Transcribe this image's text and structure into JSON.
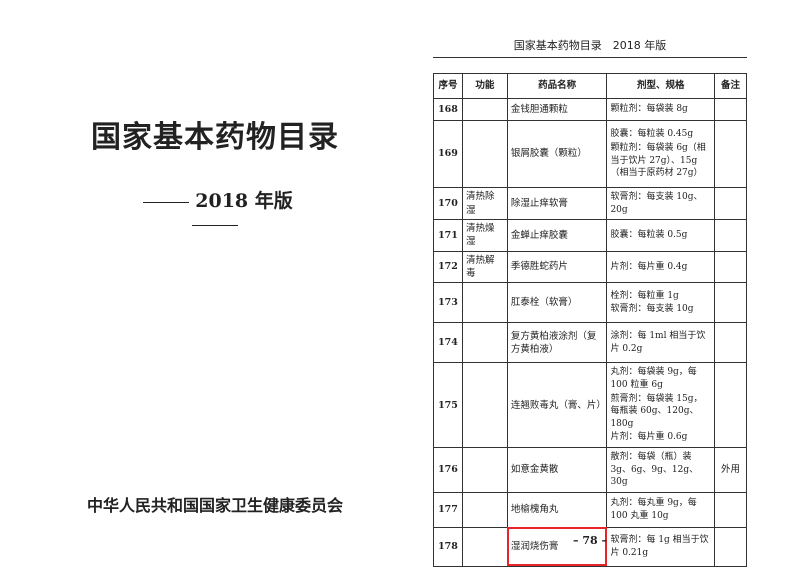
{
  "left_page": {
    "title": "国家基本药物目录",
    "edition": "2018 年版",
    "publisher": "中华人民共和国国家卫生健康委员会"
  },
  "right_page": {
    "running_header": "国家基本药物目录　2018 年版",
    "columns": [
      "序号",
      "功能",
      "药品名称",
      "剂型、规格",
      "备注"
    ],
    "rows": [
      {
        "no": "168",
        "function": "",
        "name": "金钱胆通颗粒",
        "specs": [
          "颗粒剂：每袋装 8g"
        ],
        "note": ""
      },
      {
        "no": "169",
        "function": "",
        "name": "银屑胶囊（颗粒）",
        "specs": [
          "胶囊：每粒装 0.45g",
          "颗粒剂：每袋装 6g（相当于饮片 27g）、15g（相当于原药材 27g）"
        ],
        "note": ""
      },
      {
        "no": "170",
        "function": "清热除湿",
        "name": "除湿止痒软膏",
        "specs": [
          "软膏剂：每支装 10g、20g"
        ],
        "note": ""
      },
      {
        "no": "171",
        "function": "清热燥湿",
        "name": "金蝉止痒胶囊",
        "specs": [
          "胶囊：每粒装 0.5g"
        ],
        "note": ""
      },
      {
        "no": "172",
        "function": "清热解毒",
        "name": "季德胜蛇药片",
        "specs": [
          "片剂：每片重 0.4g"
        ],
        "note": ""
      },
      {
        "no": "173",
        "function": "",
        "name": "肛泰栓（软膏）",
        "specs": [
          "栓剂：每粒重 1g",
          "软膏剂：每支装 10g"
        ],
        "note": ""
      },
      {
        "no": "174",
        "function": "",
        "name": "复方黄柏液涂剂（复方黄柏液）",
        "specs": [
          "涂剂：每 1ml 相当于饮片 0.2g"
        ],
        "note": ""
      },
      {
        "no": "175",
        "function": "",
        "name": "连翘败毒丸（膏、片）",
        "specs": [
          "丸剂：每袋装 9g，每 100 粒重 6g",
          "煎膏剂：每袋装 15g，每瓶装 60g、120g、180g",
          "片剂：每片重 0.6g"
        ],
        "note": ""
      },
      {
        "no": "176",
        "function": "",
        "name": "如意金黄散",
        "specs": [
          "散剂：每袋（瓶）装 3g、6g、9g、12g、30g"
        ],
        "note": "外用"
      },
      {
        "no": "177",
        "function": "",
        "name": "地榆槐角丸",
        "specs": [
          "丸剂：每丸重 9g，每 100 丸重 10g"
        ],
        "note": ""
      },
      {
        "no": "178",
        "function": "",
        "name": "湿润烧伤膏",
        "specs": [
          "软膏剂：每 1g 相当于饮片 0.21g"
        ],
        "note": "",
        "highlighted": true
      }
    ],
    "page_number": "– 78 –",
    "highlight_color": "#e8232a"
  }
}
